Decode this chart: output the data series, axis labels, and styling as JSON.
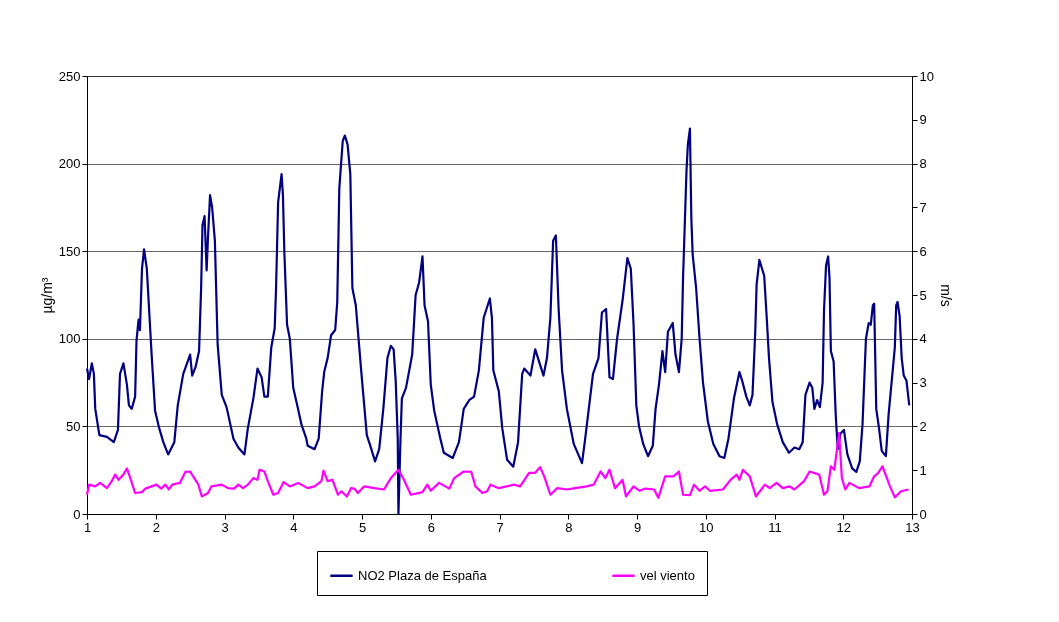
{
  "chart_data": {
    "type": "line",
    "ylabel": "µg/m³",
    "y2label": "m/s",
    "xlim": [
      1,
      13
    ],
    "xticks": [
      1,
      2,
      3,
      4,
      5,
      6,
      7,
      8,
      9,
      10,
      11,
      12,
      13
    ],
    "ylim": [
      0,
      250
    ],
    "yticks": [
      0,
      50,
      100,
      150,
      200,
      250
    ],
    "y2lim": [
      0,
      10
    ],
    "y2ticks": [
      0,
      1,
      2,
      3,
      4,
      5,
      6,
      7,
      8,
      9,
      10
    ],
    "grid": "y",
    "legend": "bottom",
    "marker": "none",
    "line_style": "solid",
    "series": [
      {
        "name": "NO2 Plaza de España",
        "color": "#000080",
        "x": [
          1.0,
          1.03,
          1.07,
          1.1,
          1.12,
          1.18,
          1.29,
          1.39,
          1.45,
          1.48,
          1.53,
          1.58,
          1.61,
          1.65,
          1.7,
          1.72,
          1.75,
          1.77,
          1.8,
          1.83,
          1.87,
          1.9,
          1.94,
          1.99,
          2.05,
          2.11,
          2.18,
          2.27,
          2.32,
          2.4,
          2.5,
          2.53,
          2.58,
          2.63,
          2.66,
          2.68,
          2.71,
          2.74,
          2.76,
          2.79,
          2.82,
          2.86,
          2.9,
          2.96,
          3.03,
          3.13,
          3.2,
          3.29,
          3.34,
          3.42,
          3.48,
          3.54,
          3.58,
          3.63,
          3.68,
          3.73,
          3.75,
          3.78,
          3.83,
          3.85,
          3.87,
          3.91,
          3.95,
          4.0,
          4.07,
          4.12,
          4.19,
          4.21,
          4.31,
          4.37,
          4.42,
          4.45,
          4.5,
          4.55,
          4.61,
          4.64,
          4.67,
          4.72,
          4.75,
          4.79,
          4.83,
          4.86,
          4.91,
          4.99,
          5.07,
          5.12,
          5.19,
          5.25,
          5.31,
          5.37,
          5.42,
          5.46,
          5.49,
          5.52,
          5.53,
          5.56,
          5.58,
          5.64,
          5.73,
          5.78,
          5.83,
          5.88,
          5.91,
          5.96,
          6.0,
          6.05,
          6.14,
          6.19,
          6.32,
          6.41,
          6.48,
          6.56,
          6.63,
          6.7,
          6.77,
          6.86,
          6.89,
          6.91,
          6.99,
          7.04,
          7.11,
          7.2,
          7.27,
          7.33,
          7.36,
          7.45,
          7.52,
          7.64,
          7.69,
          7.74,
          7.78,
          7.82,
          7.86,
          7.91,
          7.98,
          8.08,
          8.2,
          8.24,
          8.36,
          8.44,
          8.49,
          8.55,
          8.6,
          8.65,
          8.71,
          8.79,
          8.86,
          8.91,
          8.95,
          8.99,
          9.03,
          9.09,
          9.16,
          9.23,
          9.27,
          9.32,
          9.37,
          9.41,
          9.45,
          9.52,
          9.56,
          9.61,
          9.65,
          9.67,
          9.72,
          9.74,
          9.77,
          9.79,
          9.81,
          9.86,
          9.91,
          9.96,
          10.03,
          10.11,
          10.2,
          10.27,
          10.33,
          10.41,
          10.49,
          10.53,
          10.59,
          10.64,
          10.68,
          10.72,
          10.74,
          10.78,
          10.85,
          10.89,
          10.92,
          10.97,
          11.04,
          11.12,
          11.21,
          11.29,
          11.36,
          11.41,
          11.45,
          11.51,
          11.55,
          11.58,
          11.62,
          11.66,
          11.7,
          11.72,
          11.75,
          11.78,
          11.8,
          11.82,
          11.86,
          11.89,
          11.92,
          11.96,
          12.01,
          12.06,
          12.13,
          12.19,
          12.24,
          12.28,
          12.33,
          12.37,
          12.4,
          12.43,
          12.45,
          12.48,
          12.52,
          12.56,
          12.62,
          12.66,
          12.71,
          12.75,
          12.77,
          12.79,
          12.82,
          12.85,
          12.88,
          12.92,
          12.96
        ],
        "values": [
          83,
          77,
          86,
          80,
          60,
          45,
          44,
          41,
          48,
          80,
          86,
          74,
          62,
          60,
          67,
          99,
          111,
          105,
          140,
          151,
          140,
          119,
          91,
          59,
          49,
          41,
          34,
          41,
          62,
          80,
          91,
          79,
          84,
          93,
          129,
          165,
          170,
          139,
          158,
          182,
          175,
          156,
          97,
          68,
          61,
          43,
          38,
          34,
          49,
          66,
          83,
          78,
          67,
          67,
          95,
          106,
          129,
          178,
          194,
          182,
          150,
          108,
          100,
          72,
          60,
          51,
          43,
          39,
          37,
          43,
          70,
          81,
          89,
          102,
          105,
          121,
          186,
          213,
          216,
          211,
          194,
          129,
          119,
          81,
          45,
          39,
          30,
          37,
          60,
          89,
          96,
          94,
          76,
          43,
          0,
          43,
          66,
          72,
          91,
          125,
          132,
          147,
          119,
          110,
          74,
          59,
          43,
          35,
          32,
          41,
          60,
          65,
          67,
          82,
          112,
          123,
          112,
          82,
          70,
          49,
          31,
          27,
          41,
          80,
          83,
          79,
          94,
          79,
          89,
          112,
          156,
          159,
          117,
          82,
          60,
          40,
          29,
          41,
          80,
          89,
          115,
          117,
          78,
          77,
          100,
          122,
          146,
          140,
          108,
          62,
          50,
          40,
          33,
          39,
          60,
          74,
          93,
          81,
          104,
          109,
          91,
          81,
          100,
          135,
          196,
          211,
          220,
          169,
          148,
          129,
          100,
          75,
          53,
          40,
          33,
          32,
          43,
          66,
          81,
          76,
          67,
          62,
          68,
          104,
          131,
          145,
          136,
          110,
          89,
          64,
          51,
          41,
          35,
          38,
          37,
          41,
          68,
          75,
          72,
          60,
          65,
          61,
          75,
          116,
          142,
          147,
          135,
          93,
          87,
          57,
          37,
          46,
          48,
          34,
          26,
          24,
          30,
          51,
          100,
          109,
          108,
          119,
          120,
          60,
          49,
          36,
          33,
          57,
          78,
          95,
          119,
          121,
          113,
          89,
          79,
          76,
          62
        ]
      },
      {
        "name": "vel viento",
        "color": "#ff00ff",
        "axis": "y2",
        "x": [
          1.0,
          1.03,
          1.12,
          1.19,
          1.29,
          1.36,
          1.41,
          1.46,
          1.53,
          1.58,
          1.63,
          1.7,
          1.8,
          1.85,
          2.01,
          2.08,
          2.14,
          2.19,
          2.24,
          2.35,
          2.43,
          2.5,
          2.56,
          2.62,
          2.67,
          2.76,
          2.81,
          2.96,
          3.05,
          3.14,
          3.2,
          3.27,
          3.34,
          3.42,
          3.48,
          3.51,
          3.58,
          3.63,
          3.71,
          3.78,
          3.86,
          3.95,
          4.07,
          4.21,
          4.31,
          4.41,
          4.44,
          4.5,
          4.57,
          4.65,
          4.7,
          4.78,
          4.84,
          4.89,
          4.94,
          5.03,
          5.18,
          5.32,
          5.42,
          5.53,
          5.61,
          5.71,
          5.88,
          5.95,
          6.0,
          6.12,
          6.27,
          6.34,
          6.48,
          6.59,
          6.65,
          6.75,
          6.82,
          6.87,
          6.99,
          7.21,
          7.3,
          7.43,
          7.52,
          7.59,
          7.65,
          7.74,
          7.84,
          7.98,
          8.1,
          8.27,
          8.37,
          8.47,
          8.54,
          8.6,
          8.68,
          8.79,
          8.84,
          8.95,
          9.04,
          9.12,
          9.25,
          9.31,
          9.41,
          9.53,
          9.61,
          9.67,
          9.77,
          9.83,
          9.91,
          9.99,
          10.06,
          10.25,
          10.36,
          10.45,
          10.49,
          10.54,
          10.64,
          10.73,
          10.86,
          10.93,
          11.03,
          11.12,
          11.22,
          11.29,
          11.43,
          11.51,
          11.65,
          11.72,
          11.77,
          11.82,
          11.87,
          11.94,
          11.98,
          12.03,
          12.09,
          12.23,
          12.38,
          12.45,
          12.51,
          12.57,
          12.67,
          12.75,
          12.84,
          12.95
        ],
        "values": [
          0.44,
          0.67,
          0.63,
          0.71,
          0.59,
          0.75,
          0.9,
          0.78,
          0.9,
          1.04,
          0.82,
          0.48,
          0.5,
          0.58,
          0.67,
          0.58,
          0.67,
          0.56,
          0.67,
          0.71,
          0.96,
          0.97,
          0.82,
          0.67,
          0.4,
          0.48,
          0.63,
          0.67,
          0.59,
          0.58,
          0.67,
          0.59,
          0.67,
          0.82,
          0.78,
          1.01,
          0.97,
          0.75,
          0.44,
          0.48,
          0.73,
          0.63,
          0.71,
          0.59,
          0.63,
          0.75,
          0.99,
          0.75,
          0.78,
          0.44,
          0.52,
          0.4,
          0.59,
          0.58,
          0.48,
          0.63,
          0.59,
          0.56,
          0.82,
          1.01,
          0.78,
          0.44,
          0.5,
          0.67,
          0.53,
          0.71,
          0.58,
          0.82,
          0.97,
          0.96,
          0.63,
          0.48,
          0.52,
          0.67,
          0.59,
          0.67,
          0.63,
          0.94,
          0.94,
          1.07,
          0.86,
          0.44,
          0.59,
          0.56,
          0.59,
          0.63,
          0.67,
          0.97,
          0.82,
          1.01,
          0.59,
          0.78,
          0.4,
          0.63,
          0.53,
          0.58,
          0.56,
          0.37,
          0.86,
          0.86,
          0.97,
          0.44,
          0.43,
          0.67,
          0.53,
          0.63,
          0.53,
          0.56,
          0.78,
          0.9,
          0.78,
          1.01,
          0.86,
          0.4,
          0.67,
          0.59,
          0.71,
          0.59,
          0.63,
          0.56,
          0.75,
          0.97,
          0.9,
          0.44,
          0.52,
          1.09,
          1.01,
          1.85,
          0.82,
          0.56,
          0.71,
          0.59,
          0.63,
          0.86,
          0.94,
          1.09,
          0.67,
          0.38,
          0.52,
          0.56
        ]
      }
    ]
  }
}
